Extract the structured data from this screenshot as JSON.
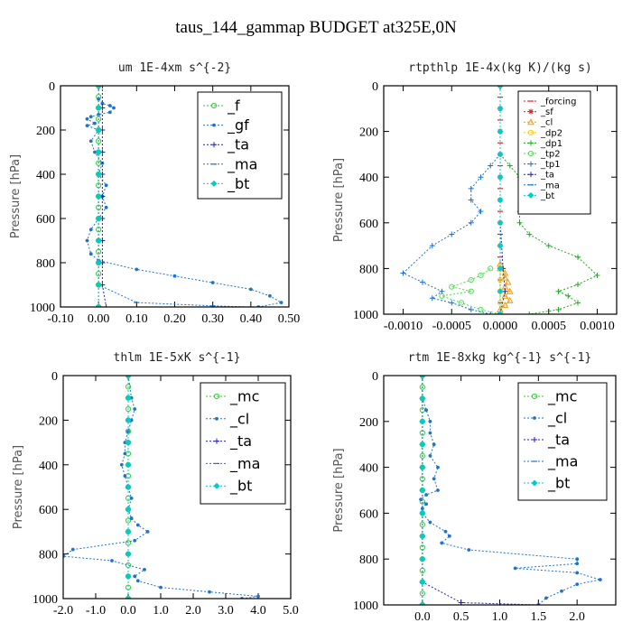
{
  "figure_title": "taus_144_gammap  BUDGET at325E,0N",
  "chart_data": [
    {
      "type": "line",
      "title": "um  1E-4xm s^{-2}",
      "ylabel": "Pressure [hPa]",
      "xlim": [
        -0.1,
        0.5
      ],
      "ylim": [
        1000,
        0
      ],
      "xticks": [
        "-0.10",
        "0.00",
        "0.10",
        "0.20",
        "0.30",
        "0.40",
        "0.50"
      ],
      "yticks": [
        "0",
        "200",
        "400",
        "600",
        "800",
        "1000"
      ],
      "legend_size": "large",
      "series": [
        {
          "name": "_f",
          "color": "#33cc33",
          "marker": "circle",
          "x": [
            0,
            0,
            0,
            0,
            0,
            0,
            0,
            0,
            0,
            0,
            0,
            0,
            0,
            0,
            0,
            0,
            0,
            0,
            0,
            0
          ],
          "y": [
            0,
            50,
            100,
            150,
            200,
            250,
            300,
            350,
            400,
            450,
            500,
            550,
            600,
            650,
            700,
            750,
            800,
            850,
            900,
            1000
          ]
        },
        {
          "name": "_gf",
          "color": "#1e73d2",
          "marker": "dot",
          "x": [
            0.0,
            0.01,
            0.03,
            0.04,
            0.03,
            0.0,
            -0.02,
            -0.03,
            -0.01,
            -0.03,
            0.0,
            -0.02,
            -0.01,
            0.01,
            0.0,
            0.02,
            0.01,
            0.02,
            0.0,
            -0.02,
            -0.03,
            -0.02,
            0.0,
            0.1,
            0.2,
            0.3,
            0.4,
            0.45,
            0.48,
            0.42
          ],
          "y": [
            60,
            80,
            90,
            100,
            120,
            130,
            140,
            150,
            170,
            180,
            200,
            250,
            300,
            350,
            400,
            450,
            500,
            550,
            600,
            650,
            700,
            760,
            790,
            830,
            860,
            890,
            920,
            950,
            980,
            1000
          ]
        },
        {
          "name": "_ta",
          "color": "#2222bb",
          "marker": "plus",
          "x": [
            0.01,
            0.01,
            0.01,
            0.01,
            0.01,
            0.01,
            0.01,
            0.01,
            0.01,
            0.01,
            0.02
          ],
          "y": [
            0,
            100,
            200,
            300,
            400,
            500,
            600,
            700,
            800,
            900,
            1000
          ]
        },
        {
          "name": "_ma",
          "color": "#1e73d2",
          "marker": "dash",
          "x": [
            0,
            0,
            0,
            0,
            0,
            0,
            0,
            0,
            0,
            0,
            0.1,
            0.3,
            0.4
          ],
          "y": [
            0,
            100,
            200,
            300,
            400,
            500,
            600,
            700,
            800,
            900,
            980,
            995,
            1000
          ]
        },
        {
          "name": "_bt",
          "color": "#00cccc",
          "marker": "diamond",
          "x": [
            0,
            0,
            0,
            0,
            0,
            0,
            0,
            0,
            0,
            0,
            0
          ],
          "y": [
            0,
            100,
            200,
            300,
            400,
            500,
            600,
            700,
            800,
            900,
            1000
          ]
        }
      ]
    },
    {
      "type": "line",
      "title": "rtpthlp  1E-4x(kg K)/(kg s)",
      "ylabel": "Pressure [hPa]",
      "xlim": [
        -0.0012,
        0.0012
      ],
      "ylim": [
        1000,
        0
      ],
      "xticks": [
        "-0.0010",
        "-0.0005",
        "0.0000",
        "0.0005",
        "0.0010"
      ],
      "yticks": [
        "0",
        "200",
        "400",
        "600",
        "800",
        "1000"
      ],
      "legend_size": "small",
      "series": [
        {
          "name": "_forcing",
          "color": "#dd2222",
          "marker": "dash",
          "x": [
            0,
            0,
            0,
            0,
            0,
            0,
            0,
            0,
            0,
            0,
            0,
            0,
            0,
            0,
            0,
            0,
            0,
            0,
            0,
            0,
            0
          ],
          "y": [
            0,
            50,
            100,
            150,
            200,
            250,
            300,
            350,
            400,
            450,
            500,
            550,
            600,
            650,
            700,
            750,
            800,
            850,
            900,
            950,
            1000
          ]
        },
        {
          "name": "_sf",
          "color": "#dd2222",
          "marker": "star",
          "x": [
            0,
            0,
            0,
            0,
            0,
            0,
            0,
            0,
            0,
            0,
            0
          ],
          "y": [
            0,
            100,
            200,
            300,
            400,
            500,
            600,
            700,
            800,
            900,
            1000
          ]
        },
        {
          "name": "_cl",
          "color": "#ff9900",
          "marker": "triangle",
          "x": [
            0.0,
            0.0,
            5e-05,
            5e-05,
            8e-05,
            5e-05,
            0.0001,
            5e-05,
            0.0001,
            5e-05,
            0.0
          ],
          "y": [
            780,
            800,
            820,
            840,
            860,
            880,
            900,
            920,
            940,
            960,
            980
          ]
        },
        {
          "name": "_dp2",
          "color": "#ffcc00",
          "marker": "circle",
          "x": [
            0,
            0,
            0,
            0,
            0
          ],
          "y": [
            800,
            850,
            900,
            950,
            1000
          ]
        },
        {
          "name": "_dp1",
          "color": "#22aa22",
          "marker": "plus",
          "x": [
            0.0,
            0.0001,
            0.0002,
            0.0003,
            0.0003,
            0.0002,
            0.0002,
            0.0003,
            0.0005,
            0.0008,
            0.001,
            0.0008,
            0.0006,
            0.0007,
            0.0008,
            0.0006,
            0.0003
          ],
          "y": [
            300,
            350,
            400,
            450,
            500,
            550,
            600,
            650,
            700,
            750,
            830,
            870,
            900,
            920,
            950,
            980,
            1000
          ]
        },
        {
          "name": "_tp2",
          "color": "#55dd55",
          "marker": "circle",
          "x": [
            -0.0001,
            -0.0002,
            -0.0003,
            -0.0005,
            -0.0003,
            -0.0006,
            -0.0004,
            -0.0002,
            0.0
          ],
          "y": [
            800,
            830,
            850,
            880,
            900,
            920,
            950,
            980,
            1000
          ]
        },
        {
          "name": "_tp1",
          "color": "#1e73d2",
          "marker": "plus",
          "x": [
            0.0,
            -0.0001,
            -0.0002,
            -0.0003,
            -0.0003,
            -0.0002,
            -0.0003,
            -0.0005,
            -0.0007,
            -0.001,
            -0.0008,
            -0.0006,
            -0.0007,
            -0.0005,
            -0.0003,
            -0.0001
          ],
          "y": [
            300,
            350,
            400,
            450,
            500,
            550,
            600,
            650,
            700,
            820,
            860,
            900,
            930,
            950,
            980,
            1000
          ]
        },
        {
          "name": "_ta",
          "color": "#2222bb",
          "marker": "plus",
          "x": [
            0,
            0,
            0,
            0,
            3e-05,
            5e-05,
            0.0
          ],
          "y": [
            0,
            200,
            400,
            600,
            800,
            900,
            1000
          ]
        },
        {
          "name": "_ma",
          "color": "#1e73d2",
          "marker": "dash",
          "x": [
            0,
            0,
            0,
            0,
            0,
            0
          ],
          "y": [
            0,
            200,
            400,
            600,
            800,
            1000
          ]
        },
        {
          "name": "_bt",
          "color": "#00cccc",
          "marker": "diamond",
          "x": [
            0,
            0,
            0,
            0,
            0,
            0,
            0,
            0,
            0,
            0,
            0
          ],
          "y": [
            0,
            100,
            200,
            300,
            400,
            500,
            600,
            700,
            800,
            900,
            1000
          ]
        }
      ]
    },
    {
      "type": "line",
      "title": "thlm  1E-5xK s^{-1}",
      "ylabel": "Pressure [hPa]",
      "xlim": [
        -2.0,
        5.0
      ],
      "ylim": [
        1000,
        0
      ],
      "xticks": [
        "-2.0",
        "-1.0",
        "0.0",
        "1.0",
        "2.0",
        "3.0",
        "4.0",
        "5.0"
      ],
      "yticks": [
        "0",
        "200",
        "400",
        "600",
        "800",
        "1000"
      ],
      "legend_size": "large",
      "series": [
        {
          "name": "_mc",
          "color": "#33cc33",
          "marker": "circle",
          "x": [
            0,
            0,
            0,
            0,
            0,
            0,
            0,
            0,
            0,
            0,
            0,
            0,
            0,
            0,
            0,
            0,
            0,
            0,
            0,
            0,
            0
          ],
          "y": [
            0,
            50,
            100,
            150,
            200,
            250,
            300,
            350,
            400,
            450,
            500,
            550,
            600,
            650,
            700,
            750,
            800,
            850,
            900,
            950,
            1000
          ]
        },
        {
          "name": "_cl",
          "color": "#1e73d2",
          "marker": "dot",
          "x": [
            0.0,
            0.1,
            0.2,
            0.1,
            0.0,
            -0.1,
            -0.1,
            -0.2,
            -0.1,
            0.0,
            0.1,
            0.0,
            0.1,
            0.3,
            0.6,
            0.2,
            -1.7,
            -2.0,
            -0.5,
            0.5,
            0.2,
            0.3,
            1.0,
            2.5,
            4.0,
            3.5
          ],
          "y": [
            0,
            100,
            150,
            200,
            250,
            300,
            350,
            400,
            450,
            500,
            550,
            600,
            640,
            670,
            700,
            740,
            780,
            810,
            830,
            870,
            900,
            920,
            950,
            970,
            990,
            1000
          ]
        },
        {
          "name": "_ta",
          "color": "#2222bb",
          "marker": "plus",
          "x": [
            0,
            0,
            0,
            0,
            0,
            0,
            0,
            0,
            0,
            0,
            0
          ],
          "y": [
            0,
            100,
            200,
            300,
            400,
            500,
            600,
            700,
            800,
            900,
            1000
          ]
        },
        {
          "name": "_ma",
          "color": "#1e73d2",
          "marker": "dash",
          "x": [
            0,
            0,
            0,
            0,
            0,
            0,
            0,
            0,
            0,
            0,
            0
          ],
          "y": [
            0,
            100,
            200,
            300,
            400,
            500,
            600,
            700,
            800,
            900,
            1000
          ]
        },
        {
          "name": "_bt",
          "color": "#00cccc",
          "marker": "diamond",
          "x": [
            0,
            0,
            0,
            0,
            0,
            0,
            0,
            0,
            0,
            0,
            0
          ],
          "y": [
            0,
            100,
            200,
            300,
            400,
            500,
            600,
            700,
            800,
            900,
            1000
          ]
        }
      ]
    },
    {
      "type": "line",
      "title": "rtm  1E-8xkg kg^{-1} s^{-1}",
      "ylabel": "Pressure [hPa]",
      "xlim": [
        -0.5,
        2.5
      ],
      "ylim": [
        1000,
        0
      ],
      "xticks": [
        "0.0",
        "0.5",
        "1.0",
        "1.5",
        "2.0"
      ],
      "yticks": [
        "0",
        "200",
        "400",
        "600",
        "800",
        "1000"
      ],
      "legend_size": "large",
      "series": [
        {
          "name": "_mc",
          "color": "#33cc33",
          "marker": "circle",
          "x": [
            0,
            0,
            0,
            0,
            0,
            0,
            0,
            0,
            0,
            0,
            0,
            0,
            0,
            0,
            0,
            0,
            0,
            0,
            0,
            0,
            0
          ],
          "y": [
            0,
            50,
            100,
            150,
            200,
            250,
            300,
            350,
            400,
            450,
            500,
            550,
            600,
            650,
            700,
            750,
            800,
            850,
            900,
            950,
            1000
          ]
        },
        {
          "name": "_cl",
          "color": "#1e73d2",
          "marker": "dot",
          "x": [
            0.0,
            0.0,
            0.05,
            0.1,
            0.1,
            0.15,
            0.1,
            0.2,
            0.15,
            0.2,
            0.05,
            -0.02,
            0.05,
            0.0,
            0.0,
            0.1,
            0.3,
            0.35,
            0.25,
            0.6,
            2.0,
            2.0,
            1.2,
            2.0,
            2.3,
            2.0,
            1.8,
            1.6,
            1.5
          ],
          "y": [
            0,
            100,
            150,
            200,
            250,
            300,
            350,
            400,
            450,
            500,
            520,
            540,
            560,
            580,
            600,
            640,
            680,
            700,
            730,
            760,
            800,
            820,
            840,
            860,
            890,
            910,
            940,
            970,
            1000
          ]
        },
        {
          "name": "_ta",
          "color": "#2222bb",
          "marker": "plus",
          "x": [
            0,
            0,
            0,
            0,
            0,
            0,
            0,
            0,
            0,
            0,
            0.5,
            1.5
          ],
          "y": [
            0,
            100,
            200,
            300,
            400,
            500,
            600,
            700,
            800,
            900,
            990,
            1000
          ]
        },
        {
          "name": "_ma",
          "color": "#1e73d2",
          "marker": "dash",
          "x": [
            0,
            0,
            0,
            0,
            0,
            0,
            0,
            0,
            0,
            0,
            0
          ],
          "y": [
            0,
            100,
            200,
            300,
            400,
            500,
            600,
            700,
            800,
            900,
            1000
          ]
        },
        {
          "name": "_bt",
          "color": "#00cccc",
          "marker": "diamond",
          "x": [
            0,
            0,
            0,
            0,
            0,
            0,
            0,
            0,
            0,
            0,
            0
          ],
          "y": [
            0,
            100,
            200,
            300,
            400,
            500,
            600,
            700,
            800,
            900,
            1000
          ]
        }
      ]
    }
  ]
}
